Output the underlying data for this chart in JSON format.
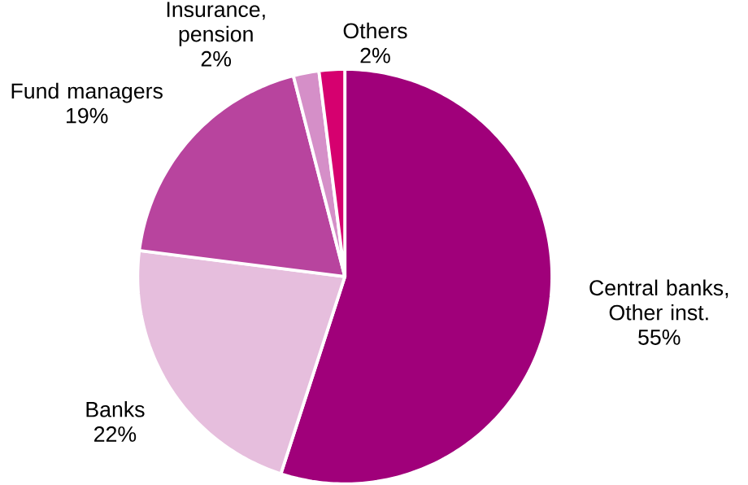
{
  "chart_data": {
    "type": "pie",
    "categories": [
      "Central banks, Other inst.",
      "Banks",
      "Fund managers",
      "Insurance, pension",
      "Others"
    ],
    "values": [
      55,
      22,
      19,
      2,
      2
    ],
    "value_labels": [
      "55%",
      "22%",
      "19%",
      "2%",
      "2%"
    ],
    "colors": [
      "#a0007a",
      "#e6bedd",
      "#b8449e",
      "#d58fc8",
      "#d6006f"
    ]
  }
}
